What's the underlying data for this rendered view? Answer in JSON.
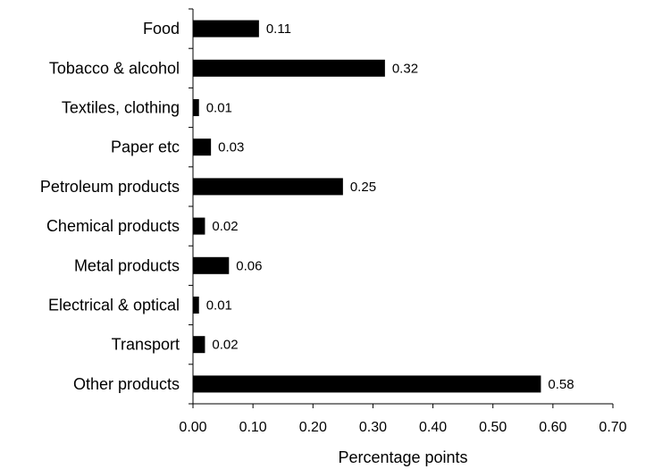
{
  "chart_data": {
    "type": "bar",
    "orientation": "horizontal",
    "categories": [
      "Food",
      "Tobacco & alcohol",
      "Textiles, clothing",
      "Paper etc",
      "Petroleum products",
      "Chemical products",
      "Metal products",
      "Electrical & optical",
      "Transport",
      "Other products"
    ],
    "values": [
      0.11,
      0.32,
      0.01,
      0.03,
      0.25,
      0.02,
      0.06,
      0.01,
      0.02,
      0.58
    ],
    "data_labels": [
      "0.11",
      "0.32",
      "0.01",
      "0.03",
      "0.25",
      "0.02",
      "0.06",
      "0.01",
      "0.02",
      "0.58"
    ],
    "title": "",
    "xlabel": "Percentage points",
    "ylabel": "",
    "xlim": [
      0,
      0.7
    ],
    "xticks": [
      0,
      0.1,
      0.2,
      0.3,
      0.4,
      0.5,
      0.6,
      0.7
    ],
    "xtick_labels": [
      "0.00",
      "0.10",
      "0.20",
      "0.30",
      "0.40",
      "0.50",
      "0.60",
      "0.70"
    ],
    "grid": false,
    "legend": "none",
    "bar_color": "#000000"
  }
}
